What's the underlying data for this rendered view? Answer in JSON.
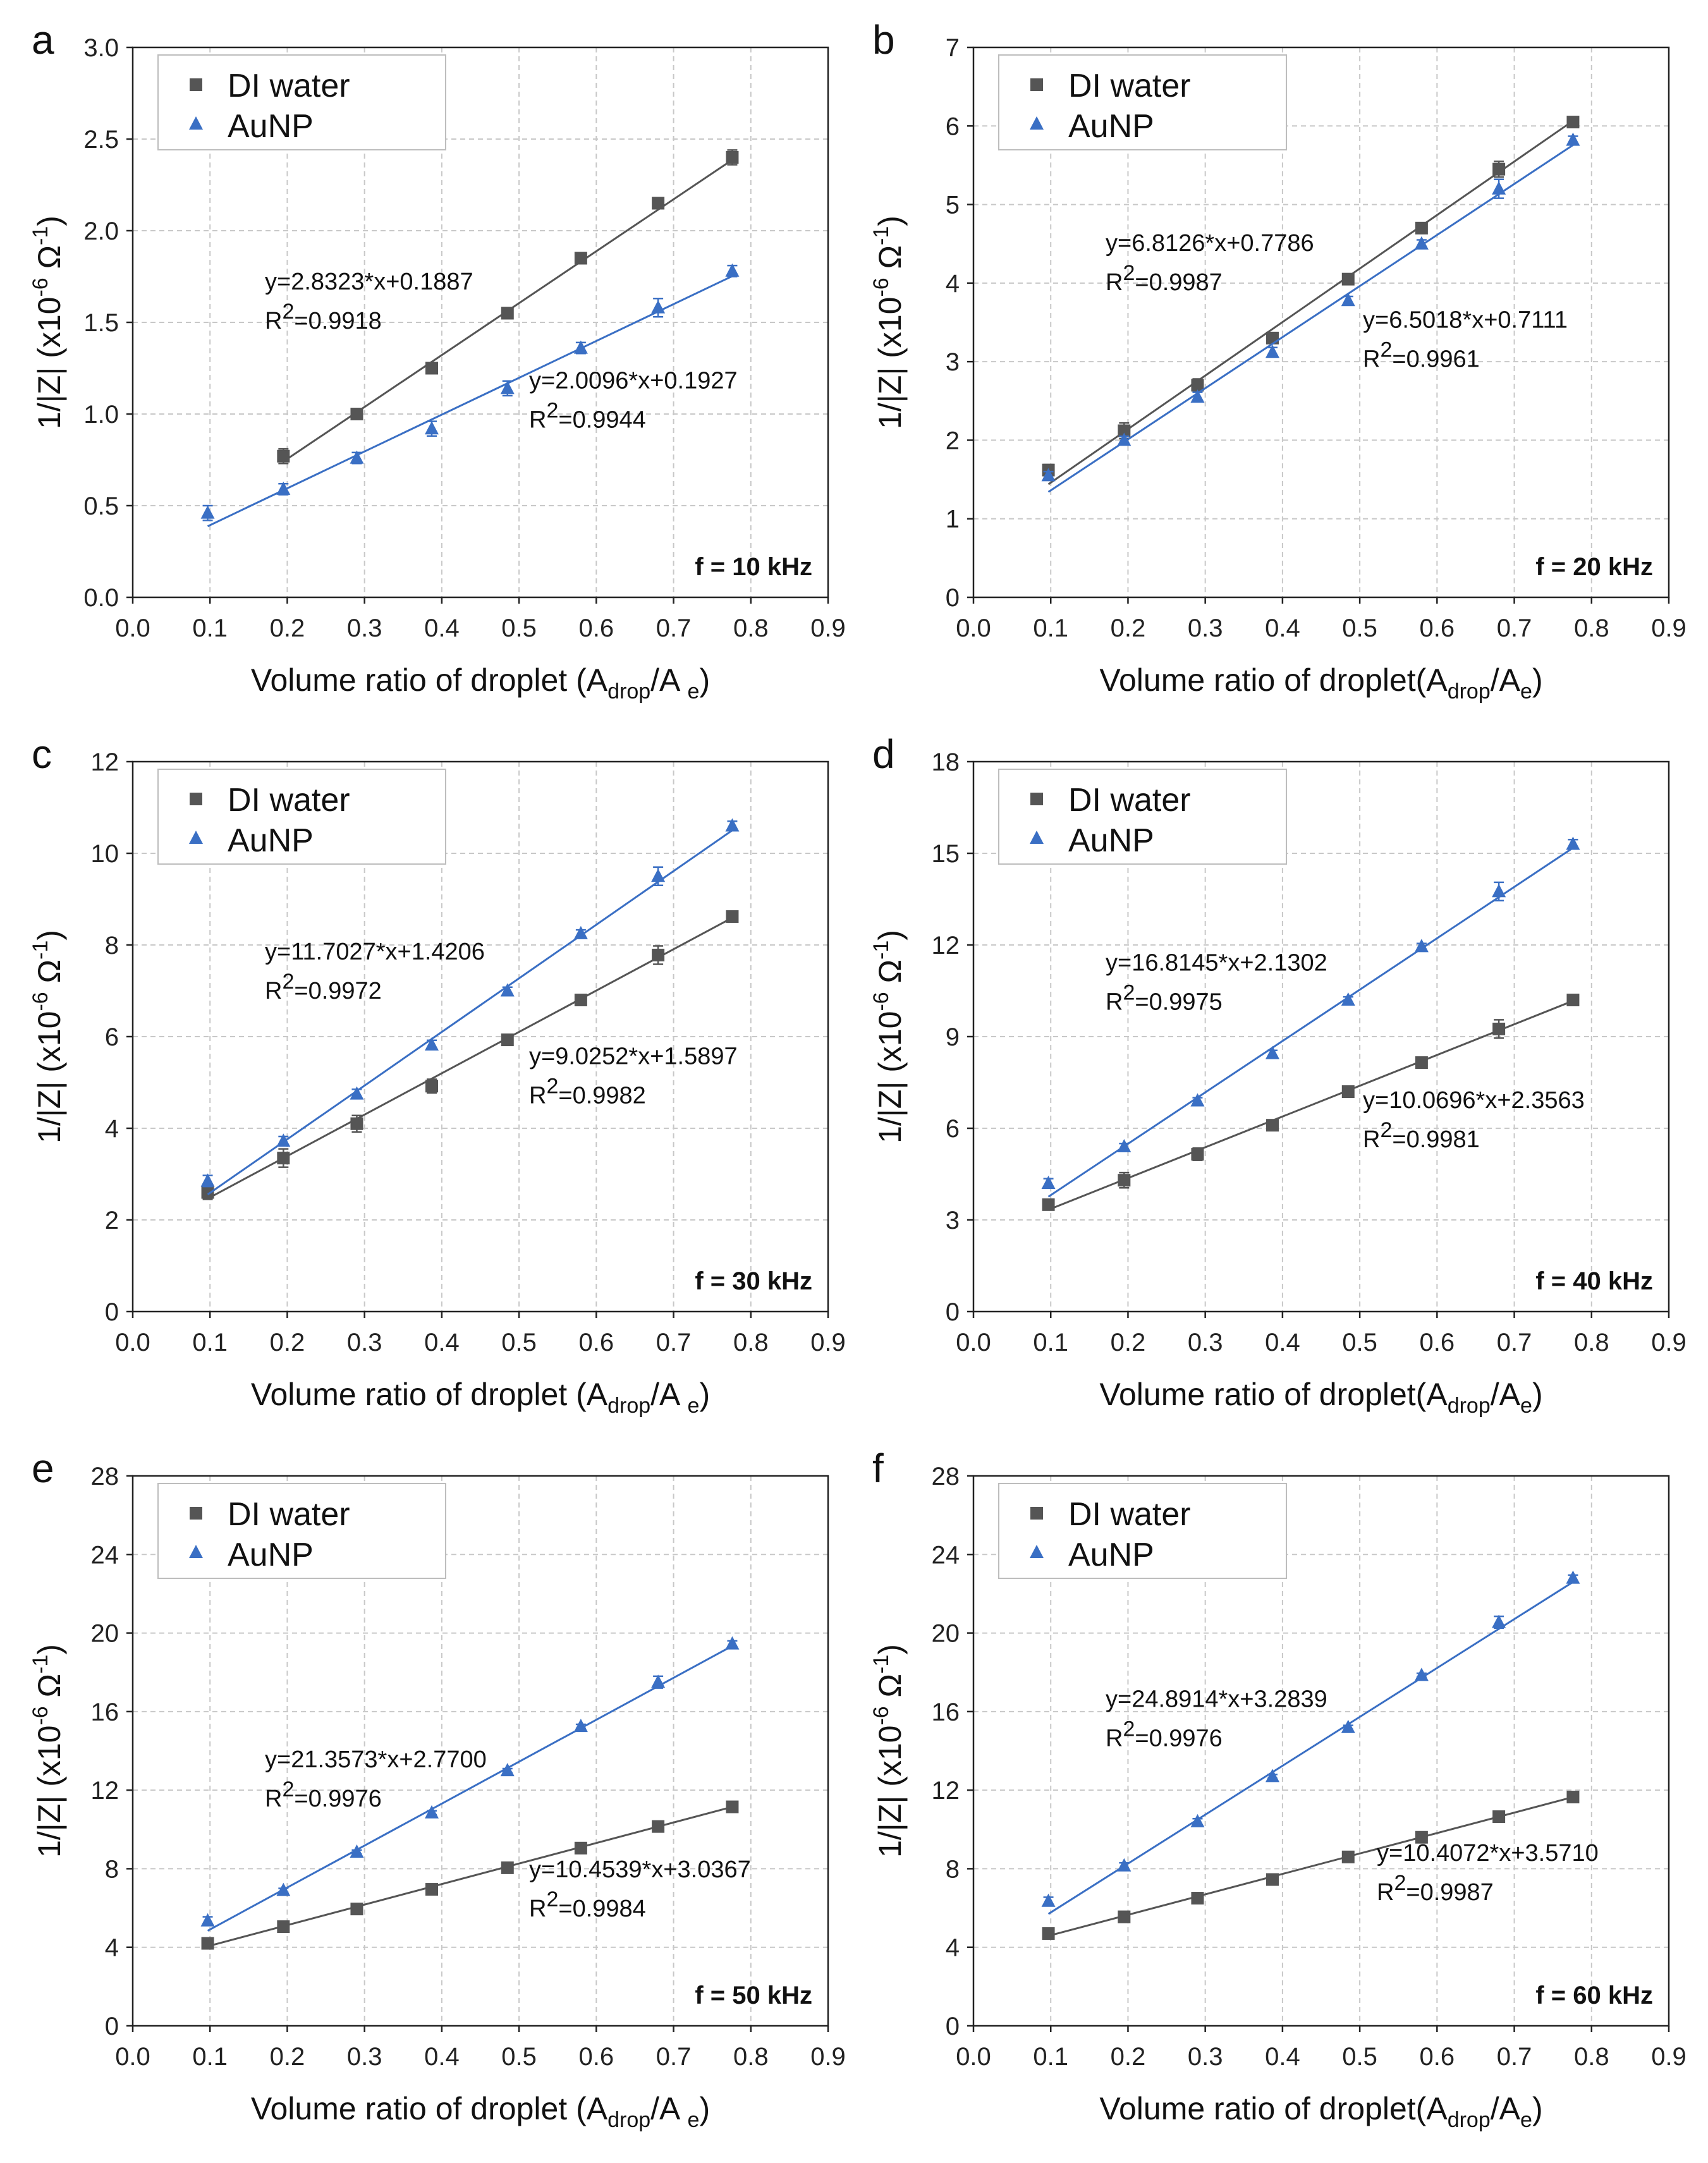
{
  "legend": {
    "series1": "DI water",
    "series2": "AuNP"
  },
  "colors": {
    "series1": "#555555",
    "series2": "#3a6fc4"
  },
  "chart_data": [
    {
      "panel": "a",
      "type": "scatter",
      "title": "",
      "frequency": "f = 10 kHz",
      "xlabel": "Volume ratio of droplet (",
      "xlabel_sym": "A",
      "xlabel_sub": "drop",
      "xlabel_mid": "/A ",
      "xlabel_sub2": "e",
      "xlabel_end": ")",
      "ylabel": "1/|Z| (x10",
      "ylabel_exp": "-6",
      "ylabel_mid": " Ω",
      "ylabel_exp2": "-1",
      "ylabel_end": ")",
      "xlim": [
        0,
        0.9
      ],
      "ylim": [
        0,
        3.0
      ],
      "xticks": [
        "0.0",
        "0.1",
        "0.2",
        "0.3",
        "0.4",
        "0.5",
        "0.6",
        "0.7",
        "0.8",
        "0.9"
      ],
      "yticks": [
        "0.0",
        "0.5",
        "1.0",
        "1.5",
        "2.0",
        "2.5",
        "3.0"
      ],
      "ytick_values": [
        0,
        0.5,
        1.0,
        1.5,
        2.0,
        2.5,
        3.0
      ],
      "grid": true,
      "legend_position": "top-left",
      "series": [
        {
          "name": "DI water",
          "marker": "square",
          "x": [
            0.195,
            0.29,
            0.387,
            0.485,
            0.58,
            0.68,
            0.776
          ],
          "y": [
            0.77,
            1.0,
            1.25,
            1.55,
            1.85,
            2.15,
            2.4
          ],
          "err": [
            0.04,
            0.02,
            0.02,
            0.02,
            0.02,
            0.02,
            0.04
          ],
          "fit": {
            "slope": 2.8323,
            "intercept": 0.1887,
            "x0": 0.195,
            "x1": 0.776
          }
        },
        {
          "name": "AuNP",
          "marker": "triangle",
          "x": [
            0.097,
            0.195,
            0.29,
            0.387,
            0.485,
            0.58,
            0.68,
            0.776
          ],
          "y": [
            0.46,
            0.59,
            0.76,
            0.92,
            1.14,
            1.36,
            1.58,
            1.78
          ],
          "err": [
            0.04,
            0.03,
            0.03,
            0.04,
            0.04,
            0.03,
            0.05,
            0.03
          ],
          "fit": {
            "slope": 2.0096,
            "intercept": 0.1927,
            "x0": 0.097,
            "x1": 0.776
          }
        }
      ],
      "annotations": [
        {
          "eq": "y=2.8323*x+0.1887",
          "r2": "=0.9918",
          "r2_label": "R",
          "r2_exp": "2",
          "series": "DI water"
        },
        {
          "eq": "y=2.0096*x+0.1927",
          "r2": "=0.9944",
          "r2_label": "R",
          "r2_exp": "2",
          "series": "AuNP"
        }
      ]
    },
    {
      "panel": "b",
      "type": "scatter",
      "title": "",
      "frequency": "f = 20 kHz",
      "xlabel": "Volume ratio of droplet(",
      "xlabel_sym": "A",
      "xlabel_sub": "drop",
      "xlabel_mid": "/A",
      "xlabel_sub2": "e",
      "xlabel_end": ")",
      "ylabel": "1/|Z| (x10",
      "ylabel_exp": "-6",
      "ylabel_mid": " Ω",
      "ylabel_exp2": "-1",
      "ylabel_end": ")",
      "xlim": [
        0,
        0.9
      ],
      "ylim": [
        0,
        7
      ],
      "xticks": [
        "0.0",
        "0.1",
        "0.2",
        "0.3",
        "0.4",
        "0.5",
        "0.6",
        "0.7",
        "0.8",
        "0.9"
      ],
      "yticks": [
        "0",
        "1",
        "2",
        "3",
        "4",
        "5",
        "6",
        "7"
      ],
      "ytick_values": [
        0,
        1,
        2,
        3,
        4,
        5,
        6,
        7
      ],
      "grid": true,
      "legend_position": "top-left",
      "series": [
        {
          "name": "DI water",
          "marker": "square",
          "x": [
            0.097,
            0.195,
            0.29,
            0.387,
            0.485,
            0.58,
            0.68,
            0.776
          ],
          "y": [
            1.62,
            2.12,
            2.7,
            3.3,
            4.05,
            4.7,
            5.45,
            6.05
          ],
          "err": [
            0.07,
            0.1,
            0.08,
            0.05,
            0.04,
            0.04,
            0.1,
            0.05
          ],
          "fit": {
            "slope": 6.8126,
            "intercept": 0.7786,
            "x0": 0.097,
            "x1": 0.776
          }
        },
        {
          "name": "AuNP",
          "marker": "triangle",
          "x": [
            0.097,
            0.195,
            0.29,
            0.387,
            0.485,
            0.58,
            0.68,
            0.776
          ],
          "y": [
            1.55,
            2.0,
            2.55,
            3.12,
            3.78,
            4.5,
            5.2,
            5.82
          ],
          "err": [
            0.05,
            0.05,
            0.06,
            0.06,
            0.05,
            0.05,
            0.12,
            0.05
          ],
          "fit": {
            "slope": 6.5018,
            "intercept": 0.7111,
            "x0": 0.097,
            "x1": 0.776
          }
        }
      ],
      "annotations": [
        {
          "eq": "y=6.8126*x+0.7786",
          "r2": "=0.9987",
          "r2_label": "R",
          "r2_exp": "2",
          "series": "DI water"
        },
        {
          "eq": "y=6.5018*x+0.7111",
          "r2": "=0.9961",
          "r2_label": "R",
          "r2_exp": "2",
          "series": "AuNP"
        }
      ]
    },
    {
      "panel": "c",
      "type": "scatter",
      "title": "",
      "frequency": "f = 30 kHz",
      "xlabel": "Volume ratio of droplet (",
      "xlabel_sym": "A",
      "xlabel_sub": "drop",
      "xlabel_mid": "/A ",
      "xlabel_sub2": "e",
      "xlabel_end": ")",
      "ylabel": "1/|Z| (x10",
      "ylabel_exp": "-6",
      "ylabel_mid": " Ω",
      "ylabel_exp2": "-1",
      "ylabel_end": ")",
      "xlim": [
        0,
        0.9
      ],
      "ylim": [
        0,
        12
      ],
      "xticks": [
        "0.0",
        "0.1",
        "0.2",
        "0.3",
        "0.4",
        "0.5",
        "0.6",
        "0.7",
        "0.8",
        "0.9"
      ],
      "yticks": [
        "0",
        "2",
        "4",
        "6",
        "8",
        "10",
        "12"
      ],
      "ytick_values": [
        0,
        2,
        4,
        6,
        8,
        10,
        12
      ],
      "grid": true,
      "legend_position": "top-left",
      "series": [
        {
          "name": "DI water",
          "marker": "square",
          "x": [
            0.097,
            0.195,
            0.29,
            0.387,
            0.485,
            0.58,
            0.68,
            0.776
          ],
          "y": [
            2.6,
            3.35,
            4.1,
            4.92,
            5.93,
            6.8,
            7.78,
            8.62
          ],
          "err": [
            0.15,
            0.2,
            0.18,
            0.15,
            0.1,
            0.08,
            0.2,
            0.08
          ],
          "fit": {
            "slope": 9.0252,
            "intercept": 1.5897,
            "x0": 0.097,
            "x1": 0.776
          }
        },
        {
          "name": "AuNP",
          "marker": "triangle",
          "x": [
            0.097,
            0.195,
            0.29,
            0.387,
            0.485,
            0.58,
            0.68,
            0.776
          ],
          "y": [
            2.85,
            3.72,
            4.75,
            5.82,
            7.0,
            8.25,
            9.5,
            10.6
          ],
          "err": [
            0.12,
            0.1,
            0.1,
            0.1,
            0.08,
            0.08,
            0.2,
            0.1
          ],
          "fit": {
            "slope": 11.7027,
            "intercept": 1.4206,
            "x0": 0.097,
            "x1": 0.776
          }
        }
      ],
      "annotations": [
        {
          "eq": "y=11.7027*x+1.4206",
          "r2": "=0.9972",
          "r2_label": "R",
          "r2_exp": "2",
          "series": "AuNP"
        },
        {
          "eq": "y=9.0252*x+1.5897",
          "r2": "=0.9982",
          "r2_label": "R",
          "r2_exp": "2",
          "series": "DI water"
        }
      ]
    },
    {
      "panel": "d",
      "type": "scatter",
      "title": "",
      "frequency": "f = 40 kHz",
      "xlabel": "Volume ratio of droplet(",
      "xlabel_sym": "A",
      "xlabel_sub": "drop",
      "xlabel_mid": "/A",
      "xlabel_sub2": "e",
      "xlabel_end": ")",
      "ylabel": "1/|Z| (x10",
      "ylabel_exp": "-6",
      "ylabel_mid": " Ω",
      "ylabel_exp2": "-1",
      "ylabel_end": ")",
      "xlim": [
        0,
        0.9
      ],
      "ylim": [
        0,
        18
      ],
      "xticks": [
        "0.0",
        "0.1",
        "0.2",
        "0.3",
        "0.4",
        "0.5",
        "0.6",
        "0.7",
        "0.8",
        "0.9"
      ],
      "yticks": [
        "0",
        "3",
        "6",
        "9",
        "12",
        "15",
        "18"
      ],
      "ytick_values": [
        0,
        3,
        6,
        9,
        12,
        15,
        18
      ],
      "grid": true,
      "legend_position": "top-left",
      "series": [
        {
          "name": "DI water",
          "marker": "square",
          "x": [
            0.097,
            0.195,
            0.29,
            0.387,
            0.485,
            0.58,
            0.68,
            0.776
          ],
          "y": [
            3.5,
            4.3,
            5.15,
            6.1,
            7.2,
            8.15,
            9.25,
            10.2
          ],
          "err": [
            0.15,
            0.25,
            0.2,
            0.15,
            0.1,
            0.1,
            0.3,
            0.1
          ],
          "fit": {
            "slope": 10.0696,
            "intercept": 2.3563,
            "x0": 0.097,
            "x1": 0.776
          }
        },
        {
          "name": "AuNP",
          "marker": "triangle",
          "x": [
            0.097,
            0.195,
            0.29,
            0.387,
            0.485,
            0.58,
            0.68,
            0.776
          ],
          "y": [
            4.2,
            5.4,
            6.9,
            8.45,
            10.2,
            11.95,
            13.75,
            15.3
          ],
          "err": [
            0.15,
            0.1,
            0.1,
            0.1,
            0.1,
            0.1,
            0.3,
            0.15
          ],
          "fit": {
            "slope": 16.8145,
            "intercept": 2.1302,
            "x0": 0.097,
            "x1": 0.776
          }
        }
      ],
      "annotations": [
        {
          "eq": "y=16.8145*x+2.1302",
          "r2": "=0.9975",
          "r2_label": "R",
          "r2_exp": "2",
          "series": "AuNP"
        },
        {
          "eq": "y=10.0696*x+2.3563",
          "r2": "=0.9981",
          "r2_label": "R",
          "r2_exp": "2",
          "series": "DI water"
        }
      ]
    },
    {
      "panel": "e",
      "type": "scatter",
      "title": "",
      "frequency": "f = 50 kHz",
      "xlabel": "Volume ratio of droplet (",
      "xlabel_sym": "A",
      "xlabel_sub": "drop",
      "xlabel_mid": "/A ",
      "xlabel_sub2": "e",
      "xlabel_end": ")",
      "ylabel": "1/|Z| (x10",
      "ylabel_exp": "-6",
      "ylabel_mid": " Ω",
      "ylabel_exp2": "-1",
      "ylabel_end": ")",
      "xlim": [
        0,
        0.9
      ],
      "ylim": [
        0,
        28
      ],
      "xticks": [
        "0.0",
        "0.1",
        "0.2",
        "0.3",
        "0.4",
        "0.5",
        "0.6",
        "0.7",
        "0.8",
        "0.9"
      ],
      "yticks": [
        "0",
        "4",
        "8",
        "12",
        "16",
        "20",
        "24",
        "28"
      ],
      "ytick_values": [
        0,
        4,
        8,
        12,
        16,
        20,
        24,
        28
      ],
      "grid": true,
      "legend_position": "top-left",
      "series": [
        {
          "name": "DI water",
          "marker": "square",
          "x": [
            0.097,
            0.195,
            0.29,
            0.387,
            0.485,
            0.58,
            0.68,
            0.776
          ],
          "y": [
            4.2,
            5.05,
            5.95,
            6.95,
            8.05,
            9.05,
            10.15,
            11.15
          ],
          "err": [
            0.15,
            0.1,
            0.1,
            0.1,
            0.1,
            0.1,
            0.15,
            0.1
          ],
          "fit": {
            "slope": 10.4539,
            "intercept": 3.0367,
            "x0": 0.097,
            "x1": 0.776
          }
        },
        {
          "name": "AuNP",
          "marker": "triangle",
          "x": [
            0.097,
            0.195,
            0.29,
            0.387,
            0.485,
            0.58,
            0.68,
            0.776
          ],
          "y": [
            5.35,
            6.9,
            8.85,
            10.85,
            13.0,
            15.25,
            17.5,
            19.45
          ],
          "err": [
            0.2,
            0.1,
            0.1,
            0.1,
            0.1,
            0.1,
            0.3,
            0.15
          ],
          "fit": {
            "slope": 21.3573,
            "intercept": 2.77,
            "x0": 0.097,
            "x1": 0.776
          }
        }
      ],
      "annotations": [
        {
          "eq": "y=21.3573*x+2.7700",
          "r2": "=0.9976",
          "r2_label": "R",
          "r2_exp": "2",
          "series": "AuNP"
        },
        {
          "eq": "y=10.4539*x+3.0367",
          "r2": "=0.9984",
          "r2_label": "R",
          "r2_exp": "2",
          "series": "DI water"
        }
      ]
    },
    {
      "panel": "f",
      "type": "scatter",
      "title": "",
      "frequency": "f = 60 kHz",
      "xlabel": "Volume ratio of droplet(",
      "xlabel_sym": "A",
      "xlabel_sub": "drop",
      "xlabel_mid": "/A",
      "xlabel_sub2": "e",
      "xlabel_end": ")",
      "ylabel": "1/|Z| (x10",
      "ylabel_exp": "-6",
      "ylabel_mid": " Ω",
      "ylabel_exp2": "-1",
      "ylabel_end": ")",
      "xlim": [
        0,
        0.9
      ],
      "ylim": [
        0,
        28
      ],
      "xticks": [
        "0.0",
        "0.1",
        "0.2",
        "0.3",
        "0.4",
        "0.5",
        "0.6",
        "0.7",
        "0.8",
        "0.9"
      ],
      "yticks": [
        "0",
        "4",
        "8",
        "12",
        "16",
        "20",
        "24",
        "28"
      ],
      "ytick_values": [
        0,
        4,
        8,
        12,
        16,
        20,
        24,
        28
      ],
      "grid": true,
      "legend_position": "top-left",
      "series": [
        {
          "name": "DI water",
          "marker": "square",
          "x": [
            0.097,
            0.195,
            0.29,
            0.387,
            0.485,
            0.58,
            0.68,
            0.776
          ],
          "y": [
            4.7,
            5.55,
            6.5,
            7.45,
            8.6,
            9.6,
            10.65,
            11.65
          ],
          "err": [
            0.15,
            0.1,
            0.1,
            0.1,
            0.1,
            0.1,
            0.15,
            0.1
          ],
          "fit": {
            "slope": 10.4072,
            "intercept": 3.571,
            "x0": 0.097,
            "x1": 0.776
          }
        },
        {
          "name": "AuNP",
          "marker": "triangle",
          "x": [
            0.097,
            0.195,
            0.29,
            0.387,
            0.485,
            0.58,
            0.68,
            0.776
          ],
          "y": [
            6.35,
            8.15,
            10.4,
            12.7,
            15.2,
            17.85,
            20.55,
            22.8
          ],
          "err": [
            0.2,
            0.15,
            0.15,
            0.1,
            0.1,
            0.1,
            0.3,
            0.15
          ],
          "fit": {
            "slope": 24.8914,
            "intercept": 3.2839,
            "x0": 0.097,
            "x1": 0.776
          }
        }
      ],
      "annotations": [
        {
          "eq": "y=24.8914*x+3.2839",
          "r2": "=0.9976",
          "r2_label": "R",
          "r2_exp": "2",
          "series": "AuNP"
        },
        {
          "eq": "y=10.4072*x+3.5710",
          "r2": "=0.9987",
          "r2_label": "R",
          "r2_exp": "2",
          "series": "DI water"
        }
      ]
    }
  ]
}
